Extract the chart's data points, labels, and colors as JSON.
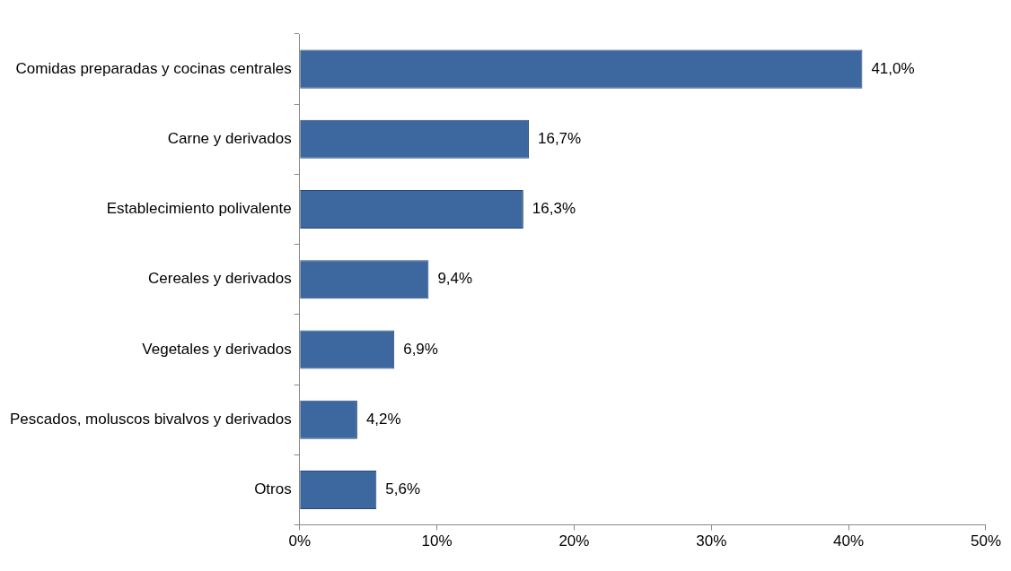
{
  "chart_data": {
    "type": "bar",
    "orientation": "horizontal",
    "categories": [
      "Comidas preparadas y cocinas centrales",
      "Carne y derivados",
      "Establecimiento polivalente",
      "Cereales y derivados",
      "Vegetales y derivados",
      "Pescados, moluscos bivalvos y derivados",
      "Otros"
    ],
    "values": [
      41.0,
      16.7,
      16.3,
      9.4,
      6.9,
      4.2,
      5.6
    ],
    "value_labels": [
      "41,0%",
      "16,7%",
      "16,3%",
      "9,4%",
      "6,9%",
      "4,2%",
      "5,6%"
    ],
    "color": "#3d679f",
    "xlim": [
      0,
      50
    ],
    "xticks": [
      {
        "value": 0,
        "label": "0%"
      },
      {
        "value": 10,
        "label": "10%"
      },
      {
        "value": 20,
        "label": "20%"
      },
      {
        "value": 30,
        "label": "30%"
      },
      {
        "value": 40,
        "label": "40%"
      },
      {
        "value": 50,
        "label": "50%"
      }
    ],
    "grid": false,
    "legend": false
  }
}
